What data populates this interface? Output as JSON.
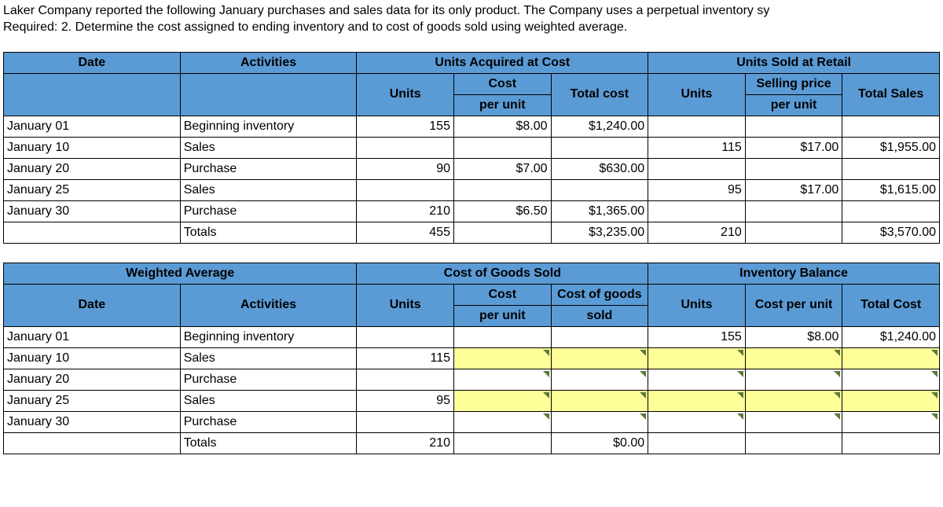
{
  "intro": {
    "line1": "Laker Company reported the following January purchases and sales data for its only product. The Company uses a perpetual inventory sy",
    "line2": "Required:  2. Determine the cost assigned to ending inventory and to cost of goods sold using weighted average."
  },
  "t1": {
    "h": {
      "date": "Date",
      "activities": "Activities",
      "uac": "Units Acquired at Cost",
      "usar": "Units Sold at Retail",
      "units": "Units",
      "cpu": "Cost",
      "cpu2": "per unit",
      "totalcost": "Total cost",
      "spu": "Selling price",
      "spu2": "per unit",
      "totalsales": "Total Sales"
    },
    "r": [
      {
        "date": "January 01",
        "act": "Beginning inventory",
        "au": "155",
        "acpu": "$8.00",
        "atc": "$1,240.00",
        "su": "",
        "sspu": "",
        "sts": ""
      },
      {
        "date": "January 10",
        "act": "Sales",
        "au": "",
        "acpu": "",
        "atc": "",
        "su": "115",
        "sspu": "$17.00",
        "sts": "$1,955.00"
      },
      {
        "date": "January 20",
        "act": "Purchase",
        "au": "90",
        "acpu": "$7.00",
        "atc": "$630.00",
        "su": "",
        "sspu": "",
        "sts": ""
      },
      {
        "date": "January 25",
        "act": "Sales",
        "au": "",
        "acpu": "",
        "atc": "",
        "su": "95",
        "sspu": "$17.00",
        "sts": "$1,615.00"
      },
      {
        "date": "January 30",
        "act": "Purchase",
        "au": "210",
        "acpu": "$6.50",
        "atc": "$1,365.00",
        "su": "",
        "sspu": "",
        "sts": ""
      },
      {
        "date": "",
        "act": "Totals",
        "au": "455",
        "acpu": "",
        "atc": "$3,235.00",
        "su": "210",
        "sspu": "",
        "sts": "$3,570.00"
      }
    ]
  },
  "t2": {
    "h": {
      "wa": "Weighted Average",
      "cogs": "Cost of Goods Sold",
      "inv": "Inventory Balance",
      "date": "Date",
      "activities": "Activities",
      "units": "Units",
      "cpu": "Cost",
      "cpu2": "per unit",
      "cgs": "Cost of goods",
      "cgs2": "sold",
      "costpu": "Cost per unit",
      "totalcost": "Total Cost"
    },
    "r": [
      {
        "date": "January 01",
        "act": "Beginning inventory",
        "cu": "",
        "ccpu": "",
        "ccogs": "",
        "iu": "155",
        "icpu": "$8.00",
        "itc": "$1,240.00",
        "input": false,
        "tri": false
      },
      {
        "date": "January 10",
        "act": "Sales",
        "cu": "115",
        "ccpu": "",
        "ccogs": "",
        "iu": "",
        "icpu": "",
        "itc": "",
        "input": true,
        "tri": true
      },
      {
        "date": "January 20",
        "act": "Purchase",
        "cu": "",
        "ccpu": "",
        "ccogs": "",
        "iu": "",
        "icpu": "",
        "itc": "",
        "input": false,
        "tri": true
      },
      {
        "date": "January 25",
        "act": "Sales",
        "cu": "95",
        "ccpu": "",
        "ccogs": "",
        "iu": "",
        "icpu": "",
        "itc": "",
        "input": true,
        "tri": true
      },
      {
        "date": "January 30",
        "act": "Purchase",
        "cu": "",
        "ccpu": "",
        "ccogs": "",
        "iu": "",
        "icpu": "",
        "itc": "",
        "input": false,
        "tri": true
      },
      {
        "date": "",
        "act": "Totals",
        "cu": "210",
        "ccpu": "",
        "ccogs": "$0.00",
        "iu": "",
        "icpu": "",
        "itc": "",
        "input": false,
        "tri": false
      }
    ]
  }
}
